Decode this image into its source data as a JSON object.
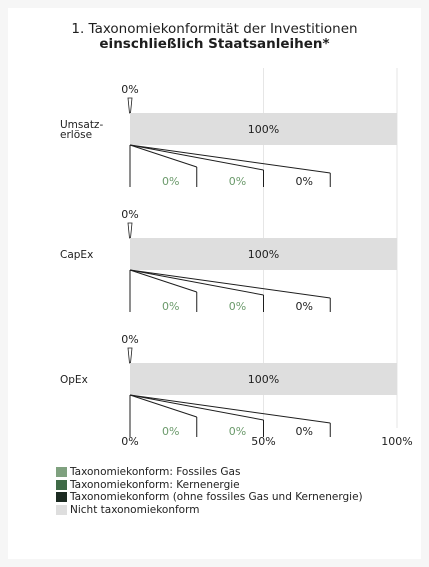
{
  "title": {
    "line1": "1. Taxonomiekonformität der Investitionen",
    "line2": "einschließlich Staatsanleihen*"
  },
  "chart_data": {
    "type": "bar",
    "orientation": "horizontal",
    "stacked": true,
    "xlim": [
      0,
      100
    ],
    "x_ticks": [
      "0%",
      "50%",
      "100%"
    ],
    "grid": true,
    "categories": [
      "Umsatz-\nerlöse",
      "CapEx",
      "OpEx"
    ],
    "series": [
      {
        "name": "Taxonomiekonform: Fossiles Gas",
        "color": "#7fa17f",
        "values": [
          0,
          0,
          0
        ],
        "labels": [
          "0%",
          "0%",
          "0%"
        ]
      },
      {
        "name": "Taxonomiekonform: Kernenergie",
        "color": "#3f6b47",
        "values": [
          0,
          0,
          0
        ],
        "labels": [
          "0%",
          "0%",
          "0%"
        ]
      },
      {
        "name": "Taxonomiekonform (ohne fossiles Gas und Kernenergie)",
        "color": "#1c2b22",
        "values": [
          0,
          0,
          0
        ],
        "labels": [
          "0%",
          "0%",
          "0%"
        ]
      },
      {
        "name": "Nicht taxonomiekonform",
        "color": "#dedede",
        "values": [
          100,
          100,
          100
        ],
        "labels": [
          "100%",
          "100%",
          "100%"
        ]
      }
    ],
    "aligned_total_labels": [
      "0%",
      "0%",
      "0%"
    ],
    "legend_position": "bottom-left"
  }
}
